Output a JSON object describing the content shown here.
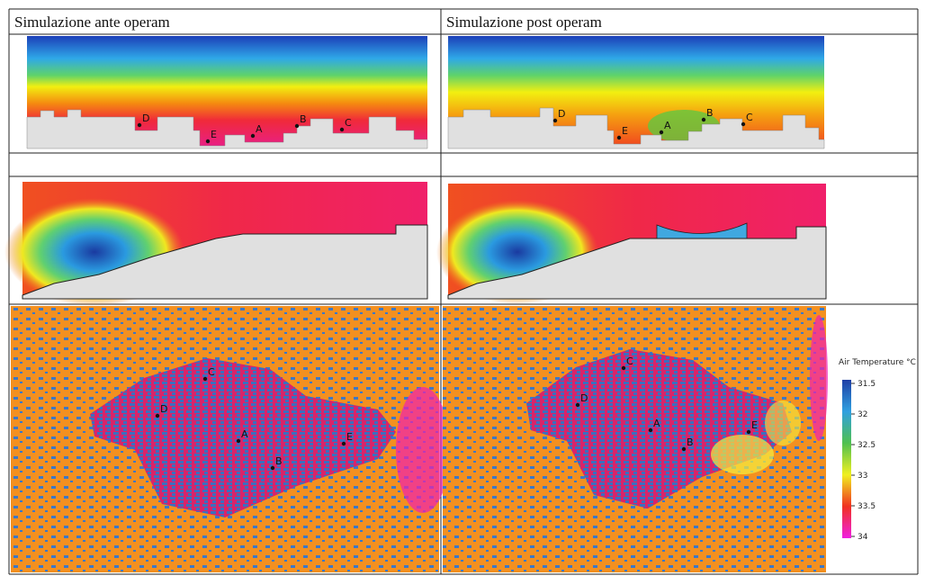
{
  "table": {
    "header": [
      "Simulazione ante operam",
      "Simulazione post operam"
    ]
  },
  "section_views": [
    {
      "markers": [
        "D",
        "E",
        "A",
        "B",
        "C"
      ]
    },
    {
      "markers": [
        "D",
        "E",
        "A",
        "B",
        "C"
      ]
    }
  ],
  "plan_views": [
    {
      "markers": [
        "C",
        "D",
        "A",
        "E",
        "B"
      ]
    },
    {
      "markers": [
        "C",
        "D",
        "A",
        "E",
        "B"
      ]
    }
  ],
  "legend": {
    "title": "Air Temperature °C",
    "ticks": [
      31.5,
      32,
      32.5,
      33,
      33.5,
      34
    ]
  }
}
